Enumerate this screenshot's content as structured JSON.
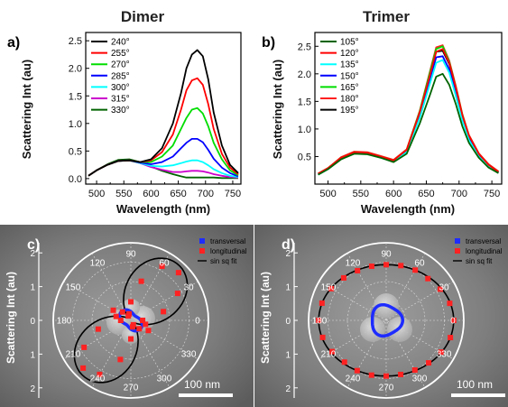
{
  "figure": {
    "col_titles": [
      "Dimer",
      "Trimer"
    ],
    "panel_labels": [
      "a)",
      "b)",
      "c)",
      "d)"
    ]
  },
  "chart_data": [
    {
      "panel": "a)",
      "type": "line",
      "title": "Dimer",
      "xlabel": "Wavelength (nm)",
      "ylabel": "Scattering Int (au)",
      "xlim": [
        480,
        765
      ],
      "ylim": [
        -0.1,
        2.65
      ],
      "xticks": [
        500,
        550,
        600,
        650,
        700,
        750
      ],
      "yticks": [
        0.0,
        0.5,
        1.0,
        1.5,
        2.0,
        2.5
      ],
      "tick_labels_y": [
        "0.0",
        "0.5",
        "1.0",
        "1.5",
        "2.0",
        "2.5"
      ],
      "legend_position": "top-left",
      "x": [
        485,
        500,
        520,
        540,
        560,
        580,
        600,
        620,
        640,
        655,
        665,
        675,
        685,
        695,
        705,
        715,
        730,
        745,
        760
      ],
      "series": [
        {
          "name": "240°",
          "color": "#000000",
          "values": [
            0.05,
            0.15,
            0.25,
            0.32,
            0.33,
            0.3,
            0.35,
            0.55,
            1.0,
            1.55,
            2.0,
            2.25,
            2.33,
            2.22,
            1.8,
            1.2,
            0.6,
            0.25,
            0.1
          ]
        },
        {
          "name": "255°",
          "color": "#ff0000",
          "values": [
            0.05,
            0.15,
            0.25,
            0.32,
            0.33,
            0.3,
            0.33,
            0.48,
            0.8,
            1.25,
            1.6,
            1.78,
            1.82,
            1.7,
            1.35,
            0.9,
            0.45,
            0.2,
            0.08
          ]
        },
        {
          "name": "270°",
          "color": "#00dd00",
          "values": [
            0.05,
            0.15,
            0.25,
            0.32,
            0.33,
            0.3,
            0.3,
            0.4,
            0.6,
            0.9,
            1.1,
            1.25,
            1.28,
            1.18,
            0.95,
            0.65,
            0.35,
            0.15,
            0.06
          ]
        },
        {
          "name": "285°",
          "color": "#0000ff",
          "values": [
            0.05,
            0.15,
            0.25,
            0.32,
            0.33,
            0.29,
            0.26,
            0.3,
            0.4,
            0.55,
            0.65,
            0.72,
            0.72,
            0.66,
            0.52,
            0.36,
            0.2,
            0.1,
            0.04
          ]
        },
        {
          "name": "300°",
          "color": "#00ffff",
          "values": [
            0.05,
            0.15,
            0.25,
            0.32,
            0.33,
            0.28,
            0.23,
            0.22,
            0.24,
            0.28,
            0.31,
            0.33,
            0.33,
            0.3,
            0.24,
            0.17,
            0.1,
            0.05,
            0.03
          ]
        },
        {
          "name": "315°",
          "color": "#cc00cc",
          "values": [
            0.05,
            0.15,
            0.25,
            0.32,
            0.33,
            0.28,
            0.21,
            0.16,
            0.12,
            0.12,
            0.13,
            0.14,
            0.14,
            0.13,
            0.11,
            0.08,
            0.05,
            0.03,
            0.02
          ]
        },
        {
          "name": "330°",
          "color": "#006400",
          "values": [
            0.05,
            0.15,
            0.26,
            0.34,
            0.35,
            0.3,
            0.22,
            0.14,
            0.08,
            0.04,
            0.02,
            0.02,
            0.02,
            0.02,
            0.02,
            0.02,
            0.01,
            0.01,
            0.01
          ]
        }
      ]
    },
    {
      "panel": "b)",
      "type": "line",
      "title": "Trimer",
      "xlabel": "Wavelength (nm)",
      "ylabel": "Scattering Int (au)",
      "xlim": [
        480,
        765
      ],
      "ylim": [
        0.0,
        2.75
      ],
      "xticks": [
        500,
        550,
        600,
        650,
        700,
        750
      ],
      "yticks": [
        0.5,
        1.0,
        1.5,
        2.0,
        2.5
      ],
      "tick_labels_y": [
        "0.5",
        "1.0",
        "1.5",
        "2.0",
        "2.5"
      ],
      "legend_position": "top-left",
      "x": [
        485,
        500,
        520,
        540,
        560,
        580,
        600,
        620,
        640,
        655,
        665,
        675,
        685,
        695,
        705,
        715,
        730,
        745,
        760
      ],
      "series": [
        {
          "name": "105°",
          "color": "#006400",
          "values": [
            0.17,
            0.27,
            0.45,
            0.55,
            0.54,
            0.48,
            0.4,
            0.55,
            1.1,
            1.6,
            1.95,
            2.0,
            1.8,
            1.45,
            1.05,
            0.75,
            0.48,
            0.3,
            0.2
          ]
        },
        {
          "name": "120°",
          "color": "#ff0000",
          "values": [
            0.19,
            0.29,
            0.48,
            0.58,
            0.57,
            0.5,
            0.43,
            0.62,
            1.3,
            1.95,
            2.4,
            2.45,
            2.2,
            1.75,
            1.25,
            0.88,
            0.55,
            0.35,
            0.22
          ]
        },
        {
          "name": "135°",
          "color": "#00ffff",
          "values": [
            0.17,
            0.27,
            0.46,
            0.56,
            0.55,
            0.48,
            0.41,
            0.58,
            1.2,
            1.8,
            2.2,
            2.25,
            2.02,
            1.6,
            1.15,
            0.8,
            0.5,
            0.32,
            0.2
          ]
        },
        {
          "name": "150°",
          "color": "#0000ff",
          "values": [
            0.18,
            0.28,
            0.47,
            0.57,
            0.56,
            0.49,
            0.42,
            0.6,
            1.25,
            1.88,
            2.3,
            2.32,
            2.08,
            1.65,
            1.18,
            0.82,
            0.52,
            0.33,
            0.21
          ]
        },
        {
          "name": "165°",
          "color": "#00dd00",
          "values": [
            0.19,
            0.29,
            0.48,
            0.58,
            0.57,
            0.5,
            0.43,
            0.62,
            1.32,
            2.0,
            2.45,
            2.5,
            2.22,
            1.76,
            1.26,
            0.88,
            0.55,
            0.35,
            0.22
          ]
        },
        {
          "name": "180°",
          "color": "#ff2020",
          "values": [
            0.19,
            0.29,
            0.49,
            0.59,
            0.58,
            0.51,
            0.44,
            0.63,
            1.33,
            2.02,
            2.48,
            2.52,
            2.24,
            1.78,
            1.27,
            0.89,
            0.56,
            0.36,
            0.23
          ]
        },
        {
          "name": "195°",
          "color": "#000000",
          "values": [
            0.19,
            0.29,
            0.48,
            0.58,
            0.57,
            0.5,
            0.43,
            0.61,
            1.3,
            1.97,
            2.4,
            2.42,
            2.18,
            1.72,
            1.23,
            0.86,
            0.54,
            0.34,
            0.22
          ]
        }
      ]
    },
    {
      "panel": "c)",
      "type": "scatter",
      "subtype": "polar",
      "ylabel": "Scattering Int (au)",
      "angle_ticks": [
        "0",
        "30",
        "60",
        "90",
        "120",
        "150",
        "180",
        "210",
        "240",
        "270",
        "300",
        "330"
      ],
      "radial_ticks": [
        "2",
        "1",
        "0",
        "1",
        "2"
      ],
      "rmax": 2.3,
      "legend": [
        "transversal",
        "longitudinal",
        "sin sq fit"
      ],
      "legend_position": "top-right",
      "scale_bar": "100 nm",
      "longitudinal": {
        "color": "#ff2222",
        "angles_deg": [
          0,
          15,
          30,
          45,
          60,
          75,
          90,
          105,
          120,
          135,
          150,
          165,
          180,
          195,
          210,
          225,
          240,
          255,
          270,
          285,
          300,
          315,
          330,
          345
        ],
        "r": [
          0.35,
          1.0,
          1.6,
          2.0,
          1.85,
          1.2,
          0.55,
          0.2,
          0.15,
          0.35,
          0.6,
          0.45,
          0.3,
          1.0,
          1.6,
          2.0,
          1.85,
          1.2,
          0.55,
          0.2,
          0.15,
          0.35,
          0.6,
          0.45
        ]
      },
      "transversal": {
        "color": "#1e2cff",
        "shape": "peanut",
        "r_mean": 0.3
      },
      "fit": {
        "type": "sin sq fit",
        "amplitude": 2.05,
        "peak_angle_deg": 50,
        "offset": 0.12
      }
    },
    {
      "panel": "d)",
      "type": "scatter",
      "subtype": "polar",
      "ylabel": "Scattering Int (au)",
      "angle_ticks": [
        "0",
        "30",
        "60",
        "90",
        "120",
        "150",
        "180",
        "210",
        "240",
        "270",
        "300",
        "330"
      ],
      "radial_ticks": [
        "2",
        "1",
        "0",
        "1",
        "2"
      ],
      "rmax": 2.3,
      "legend": [
        "transversal",
        "longitudinal",
        "sin sq fit"
      ],
      "legend_position": "top-right",
      "scale_bar": "100 nm",
      "longitudinal": {
        "color": "#ff2222",
        "angles_deg": [
          0,
          15,
          30,
          45,
          60,
          75,
          90,
          105,
          120,
          135,
          150,
          165,
          180,
          195,
          210,
          225,
          240,
          255,
          270,
          285,
          300,
          315,
          330,
          345
        ],
        "r": [
          2.0,
          1.95,
          1.85,
          1.75,
          1.72,
          1.68,
          1.65,
          1.66,
          1.7,
          1.78,
          1.88,
          1.97,
          2.0,
          1.95,
          1.85,
          1.75,
          1.72,
          1.68,
          1.65,
          1.66,
          1.7,
          1.78,
          1.88,
          1.97
        ]
      },
      "transversal": {
        "color": "#1e2cff",
        "shape": "round",
        "r_mean": 0.45
      },
      "fit": {
        "type": "sin sq fit",
        "ellipse_a": 2.0,
        "ellipse_b": 1.65
      }
    }
  ]
}
